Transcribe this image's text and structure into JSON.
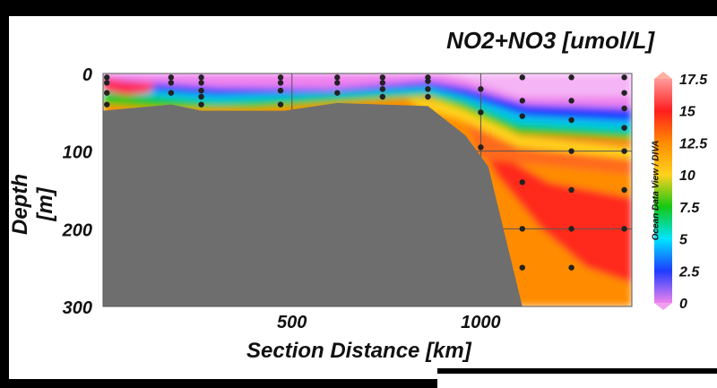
{
  "chart_data": {
    "type": "heatmap",
    "title": "NO2+NO3 [umol/L]",
    "xlabel": "Section Distance [km]",
    "ylabel": "Depth [m]",
    "xlim": [
      0,
      1400
    ],
    "ylim": [
      0,
      300
    ],
    "y_inverted": true,
    "grid": true,
    "x_ticks": [
      500,
      1000
    ],
    "y_ticks": [
      0,
      100,
      200,
      300
    ],
    "colorbar": {
      "min": 0,
      "max": 17.5,
      "ticks": [
        0,
        2.5,
        5,
        7.5,
        10,
        12.5,
        15,
        17.5
      ],
      "colors": [
        "#ee82ee",
        "#1e3cff",
        "#00e5ff",
        "#14c814",
        "#ffd21e",
        "#ff8c00",
        "#ff1e1e",
        "#ff9a9a"
      ]
    },
    "credit": "Ocean Data View / DIVA",
    "bathymetry": {
      "color": "#6e6e6e",
      "points": [
        [
          0,
          48
        ],
        [
          180,
          40
        ],
        [
          260,
          48
        ],
        [
          480,
          48
        ],
        [
          620,
          38
        ],
        [
          860,
          42
        ],
        [
          960,
          80
        ],
        [
          1020,
          120
        ],
        [
          1110,
          300
        ]
      ]
    },
    "stations": [
      {
        "x": 10,
        "depths": [
          5,
          12,
          25,
          40
        ]
      },
      {
        "x": 180,
        "depths": [
          5,
          12,
          25
        ]
      },
      {
        "x": 260,
        "depths": [
          5,
          12,
          22,
          30,
          40
        ]
      },
      {
        "x": 470,
        "depths": [
          5,
          12,
          22,
          40
        ]
      },
      {
        "x": 620,
        "depths": [
          5,
          12,
          25
        ]
      },
      {
        "x": 740,
        "depths": [
          5,
          12,
          20,
          30
        ]
      },
      {
        "x": 860,
        "depths": [
          5,
          10,
          20,
          30
        ]
      },
      {
        "x": 1000,
        "depths": [
          20,
          50,
          95
        ]
      },
      {
        "x": 1110,
        "depths": [
          5,
          35,
          55,
          140,
          200,
          250
        ]
      },
      {
        "x": 1240,
        "depths": [
          5,
          35,
          60,
          100,
          150,
          200,
          250
        ]
      },
      {
        "x": 1380,
        "depths": [
          5,
          25,
          45,
          70,
          100,
          150,
          200
        ]
      }
    ]
  }
}
